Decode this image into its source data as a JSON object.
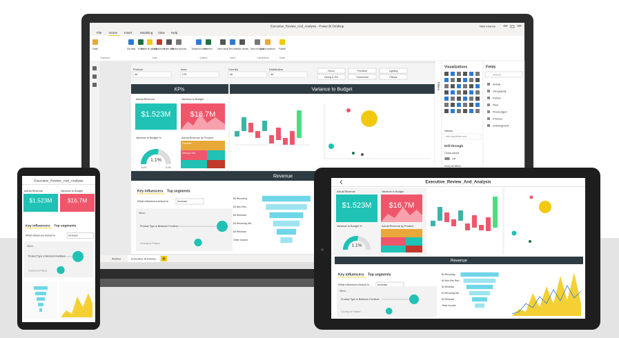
{
  "laptop": {
    "title_bar": "Executive_Review_And_Analysis - Power BI Desktop",
    "user": "Nitin Khanna",
    "ribbon_tabs": [
      "File",
      "Home",
      "Insert",
      "Modeling",
      "View",
      "Help"
    ],
    "ribbon_buttons": [
      "Paste",
      "Get data",
      "Excel",
      "Power BI datasets",
      "SQL Server",
      "Enter data",
      "Recent sources",
      "Transform data",
      "Refresh",
      "New visual",
      "Text box",
      "More visuals",
      "New measure",
      "Quick measure",
      "Publish"
    ],
    "ribbon_groups": [
      "Clipboard",
      "Data",
      "Queries",
      "Insert",
      "Calculations",
      "Share"
    ],
    "filters": [
      {
        "label": "Product",
        "value": "All"
      },
      {
        "label": "Area",
        "value": "CIS"
      },
      {
        "label": "Country",
        "value": "All"
      },
      {
        "label": "Distribution",
        "value": "All"
      }
    ],
    "slicer_buttons": [
      "Decor",
      "Furniture",
      "Lighting",
      "Dining & Ent",
      "Household",
      "Pillows"
    ],
    "kpis_header": "KPIs",
    "variance_header": "Variance to Budget",
    "revenue_header": "Revenue",
    "cards": {
      "actual_label": "Actual Revenue",
      "actual_value": "$1.523M",
      "variance_label": "Variance to Budget",
      "variance_value": "$16.7M",
      "pct_label": "Variance to Budget %",
      "pct_value": "1.1%",
      "gauge_min": "-5.0%",
      "gauge_max": "5.0%",
      "product_label": "Actual Revenue by Product",
      "products": [
        "Furniture",
        "Dining & Ent"
      ]
    },
    "key_influencers": {
      "tab": "Key influencers",
      "top_segments": "Top segments",
      "question": "What influences Actual to",
      "option": "Increase",
      "when": "When...",
      "influencers": [
        "Product Type is Bedroom Furniture",
        "Country is Poland"
      ]
    },
    "funnel_labels": [
      "$4 Recurring",
      "$4 Non-Rec...",
      "$4 Renewal",
      "$4 Recurring Me...",
      "$4 Renewal",
      "Other Income"
    ],
    "page_tabs": [
      "Archive",
      "Executive Summary"
    ],
    "filters_pane": "Filters",
    "visualizations": {
      "title": "Visualizations",
      "values": "Values",
      "add_fields": "Add data fields here",
      "drill_through": "Drill through",
      "cross_report": "Cross-report",
      "toggle": "Off",
      "keep_filters": "Keep all filters"
    },
    "fields": {
      "title": "Fields",
      "search": "Search",
      "items": [
        "Actual",
        "Geography",
        "Period",
        "Plan",
        "Prodcutged",
        "Product",
        "SubSegment"
      ]
    }
  },
  "phone": {
    "title": "Executive_Review_And_Analysis",
    "cards": {
      "actual_label": "Actual Revenue",
      "actual_value": "$1.523M",
      "variance_label": "Variance to Budget",
      "variance_value": "$16.7M"
    },
    "key_influencers": {
      "tab": "Key influencers",
      "top_segments": "Top segments",
      "question": "What influences Actual to",
      "option": "Increase",
      "when": "When...",
      "influencers": [
        "Product Type is Bedroom Furniture",
        "Country is Poland"
      ]
    }
  },
  "tablet": {
    "title": "Executive_Review_And_Analysis",
    "cards": {
      "actual_label": "Actual Revenue",
      "actual_value": "$1.523M",
      "variance_label": "Variance to Budget",
      "variance_value": "$16.7M",
      "pct_label": "Variance to Budget %",
      "pct_value": "1.1%",
      "product_label": "Actual Revenue by Product"
    },
    "revenue_header": "Revenue",
    "key_influencers": {
      "tab": "Key influencers",
      "top_segments": "Top segments",
      "question": "What influences Actual to",
      "option": "Increase",
      "when": "When...",
      "influencers": [
        "Product Type is Bedroom Furniture",
        "Country is Poland"
      ]
    },
    "funnel_labels": [
      "$4 Recurring",
      "$4 Non-Rec Ren...",
      "$4 Renewal",
      "$4 Recurring Me...",
      "$4 Renewal",
      "Other Income"
    ]
  }
}
